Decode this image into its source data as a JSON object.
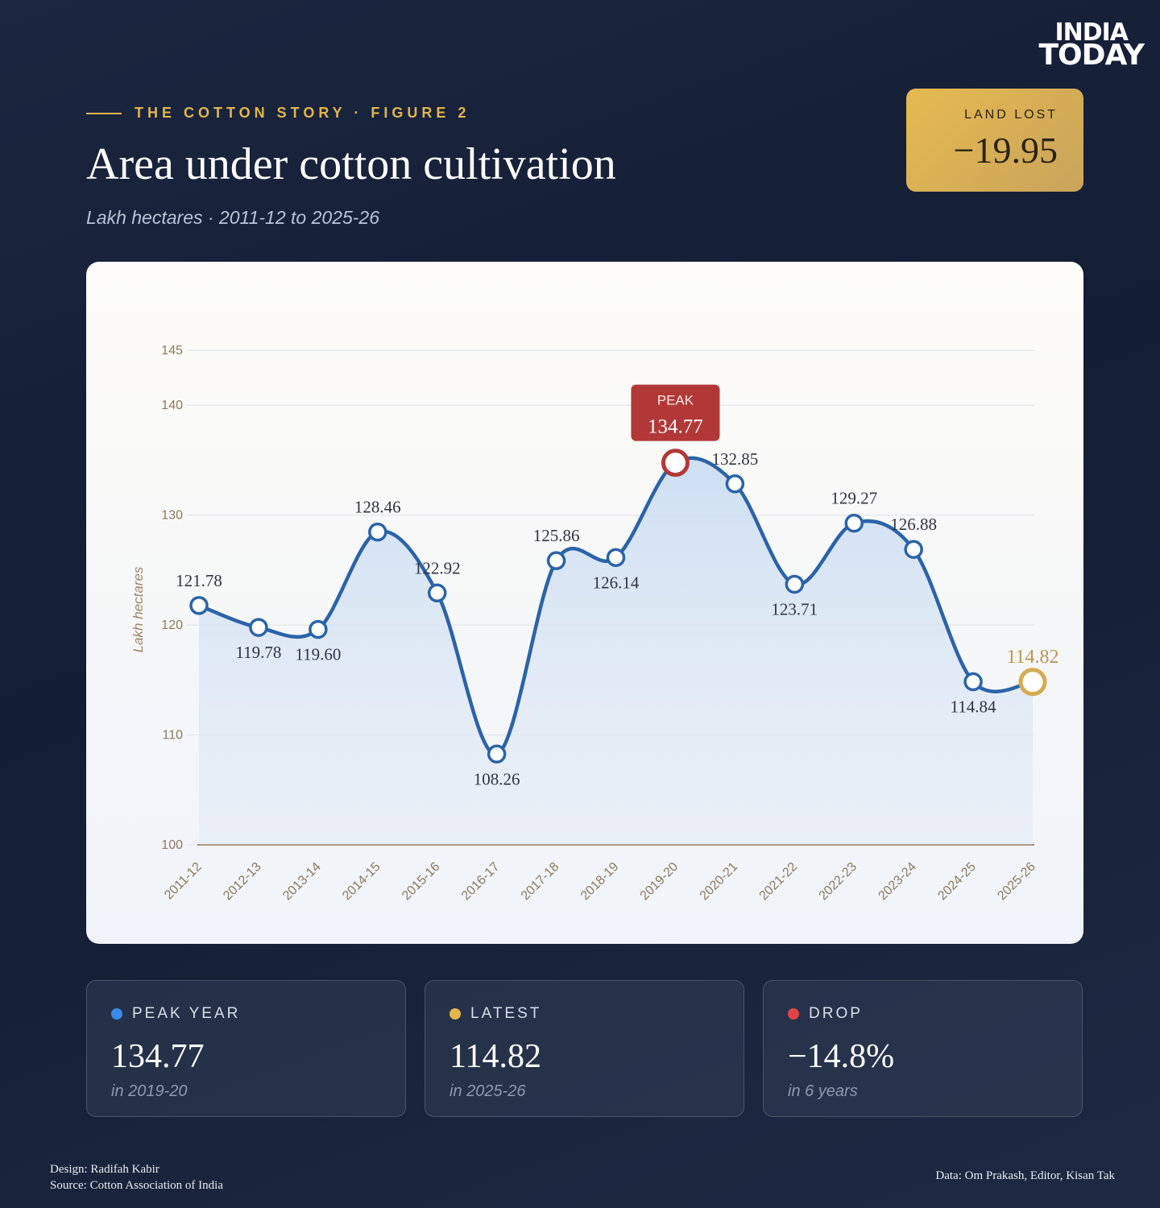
{
  "brand": {
    "line1": "INDIA",
    "line2": "TODAY"
  },
  "header": {
    "kicker": "THE COTTON STORY · FIGURE 2",
    "title": "Area under cotton cultivation",
    "subtitle": "Lakh hectares · 2011-12 to 2025-26"
  },
  "badge": {
    "label": "LAND LOST",
    "value": "−19.95"
  },
  "chart_data": {
    "type": "line",
    "y_label": "Lakh hectares",
    "annotation": "PEAK",
    "categories": [
      "2011-12",
      "2012-13",
      "2013-14",
      "2014-15",
      "2015-16",
      "2016-17",
      "2017-18",
      "2018-19",
      "2019-20",
      "2020-21",
      "2021-22",
      "2022-23",
      "2023-24",
      "2024-25",
      "2025-26"
    ],
    "values": [
      121.78,
      119.78,
      119.6,
      128.46,
      122.92,
      108.26,
      125.86,
      126.14,
      134.77,
      132.85,
      123.71,
      129.27,
      126.88,
      114.84,
      114.82
    ],
    "value_labels": [
      "121.78",
      "119.78",
      "119.60",
      "128.46",
      "122.92",
      "108.26",
      "125.86",
      "126.14",
      "134.77",
      "132.85",
      "123.71",
      "129.27",
      "126.88",
      "114.84",
      "114.82"
    ],
    "color": "#2b63a8",
    "peak_color": "#b23838",
    "latest_color": "#d4ac52",
    "ylim": [
      100,
      145
    ],
    "yticks": [
      100,
      110,
      120,
      130,
      140,
      145
    ],
    "grid": true
  },
  "cards": [
    {
      "label": "PEAK YEAR",
      "value": "134.77",
      "note": "in 2019-20"
    },
    {
      "label": "LATEST",
      "value": "114.82",
      "note": "in 2025-26"
    },
    {
      "label": "DROP",
      "value": "−14.8%",
      "note": "in 6 years"
    }
  ],
  "footer": {
    "design": "Design: Radifah Kabir",
    "source": "Source: Cotton Association of India",
    "data": "Data: Om Prakash, Editor, Kisan Tak"
  }
}
